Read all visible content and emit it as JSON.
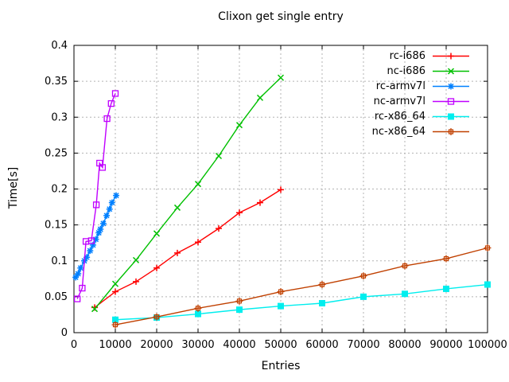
{
  "chart_data": {
    "type": "line",
    "title": "Clixon get single entry",
    "xlabel": "Entries",
    "ylabel": "Time[s]",
    "xlim": [
      0,
      100000
    ],
    "ylim": [
      0,
      0.4
    ],
    "xtick_values": [
      0,
      10000,
      20000,
      30000,
      40000,
      50000,
      60000,
      70000,
      80000,
      90000,
      100000
    ],
    "xtick_labels": [
      "0",
      "10000",
      "20000",
      "30000",
      "40000",
      "50000",
      "60000",
      "70000",
      "80000",
      "90000",
      "100000"
    ],
    "ytick_values": [
      0,
      0.05,
      0.1,
      0.15,
      0.2,
      0.25,
      0.3,
      0.35,
      0.4
    ],
    "ytick_labels": [
      "0",
      "0.05",
      "0.1",
      "0.15",
      "0.2",
      "0.25",
      "0.3",
      "0.35",
      "0.4"
    ],
    "grid": true,
    "legend_position": "top-right-inside",
    "grid_color": "#b3b3b3",
    "axis_color": "#000000",
    "series": [
      {
        "name": "rc-i686",
        "color": "#ff0000",
        "marker": "plus",
        "points": [
          [
            5000,
            0.035
          ],
          [
            10000,
            0.057
          ],
          [
            15000,
            0.071
          ],
          [
            20000,
            0.09
          ],
          [
            25000,
            0.111
          ],
          [
            30000,
            0.126
          ],
          [
            35000,
            0.145
          ],
          [
            40000,
            0.167
          ],
          [
            45000,
            0.181
          ],
          [
            50000,
            0.199
          ]
        ]
      },
      {
        "name": "nc-i686",
        "color": "#00c000",
        "marker": "cross",
        "points": [
          [
            5000,
            0.033
          ],
          [
            10000,
            0.068
          ],
          [
            15000,
            0.101
          ],
          [
            20000,
            0.138
          ],
          [
            25000,
            0.174
          ],
          [
            30000,
            0.207
          ],
          [
            35000,
            0.246
          ],
          [
            40000,
            0.289
          ],
          [
            45000,
            0.327
          ],
          [
            50000,
            0.355
          ]
        ]
      },
      {
        "name": "rc-armv7l",
        "color": "#0080ff",
        "marker": "asterisk",
        "points": [
          [
            400,
            0.077
          ],
          [
            1000,
            0.082
          ],
          [
            1600,
            0.09
          ],
          [
            2500,
            0.1
          ],
          [
            3100,
            0.105
          ],
          [
            3900,
            0.114
          ],
          [
            4600,
            0.122
          ],
          [
            5300,
            0.13
          ],
          [
            6000,
            0.139
          ],
          [
            6400,
            0.144
          ],
          [
            7100,
            0.152
          ],
          [
            7900,
            0.163
          ],
          [
            8600,
            0.172
          ],
          [
            9200,
            0.181
          ],
          [
            10200,
            0.191
          ]
        ]
      },
      {
        "name": "nc-armv7l",
        "color": "#c000ff",
        "marker": "open-square",
        "points": [
          [
            800,
            0.047
          ],
          [
            2000,
            0.062
          ],
          [
            2900,
            0.127
          ],
          [
            4200,
            0.128
          ],
          [
            5400,
            0.178
          ],
          [
            6200,
            0.236
          ],
          [
            6900,
            0.23
          ],
          [
            8000,
            0.298
          ],
          [
            9000,
            0.319
          ],
          [
            10000,
            0.333
          ]
        ]
      },
      {
        "name": "rc-x86_64",
        "color": "#00eeee",
        "marker": "filled-square",
        "points": [
          [
            10000,
            0.018
          ],
          [
            20000,
            0.021
          ],
          [
            30000,
            0.026
          ],
          [
            40000,
            0.032
          ],
          [
            50000,
            0.037
          ],
          [
            60000,
            0.041
          ],
          [
            70000,
            0.05
          ],
          [
            80000,
            0.054
          ],
          [
            90000,
            0.061
          ],
          [
            100000,
            0.067
          ]
        ]
      },
      {
        "name": "nc-x86_64",
        "color": "#c04000",
        "marker": "square-plus",
        "points": [
          [
            10000,
            0.011
          ],
          [
            20000,
            0.022
          ],
          [
            30000,
            0.034
          ],
          [
            40000,
            0.044
          ],
          [
            50000,
            0.057
          ],
          [
            60000,
            0.067
          ],
          [
            70000,
            0.079
          ],
          [
            80000,
            0.093
          ],
          [
            90000,
            0.103
          ],
          [
            100000,
            0.118
          ]
        ]
      }
    ]
  }
}
